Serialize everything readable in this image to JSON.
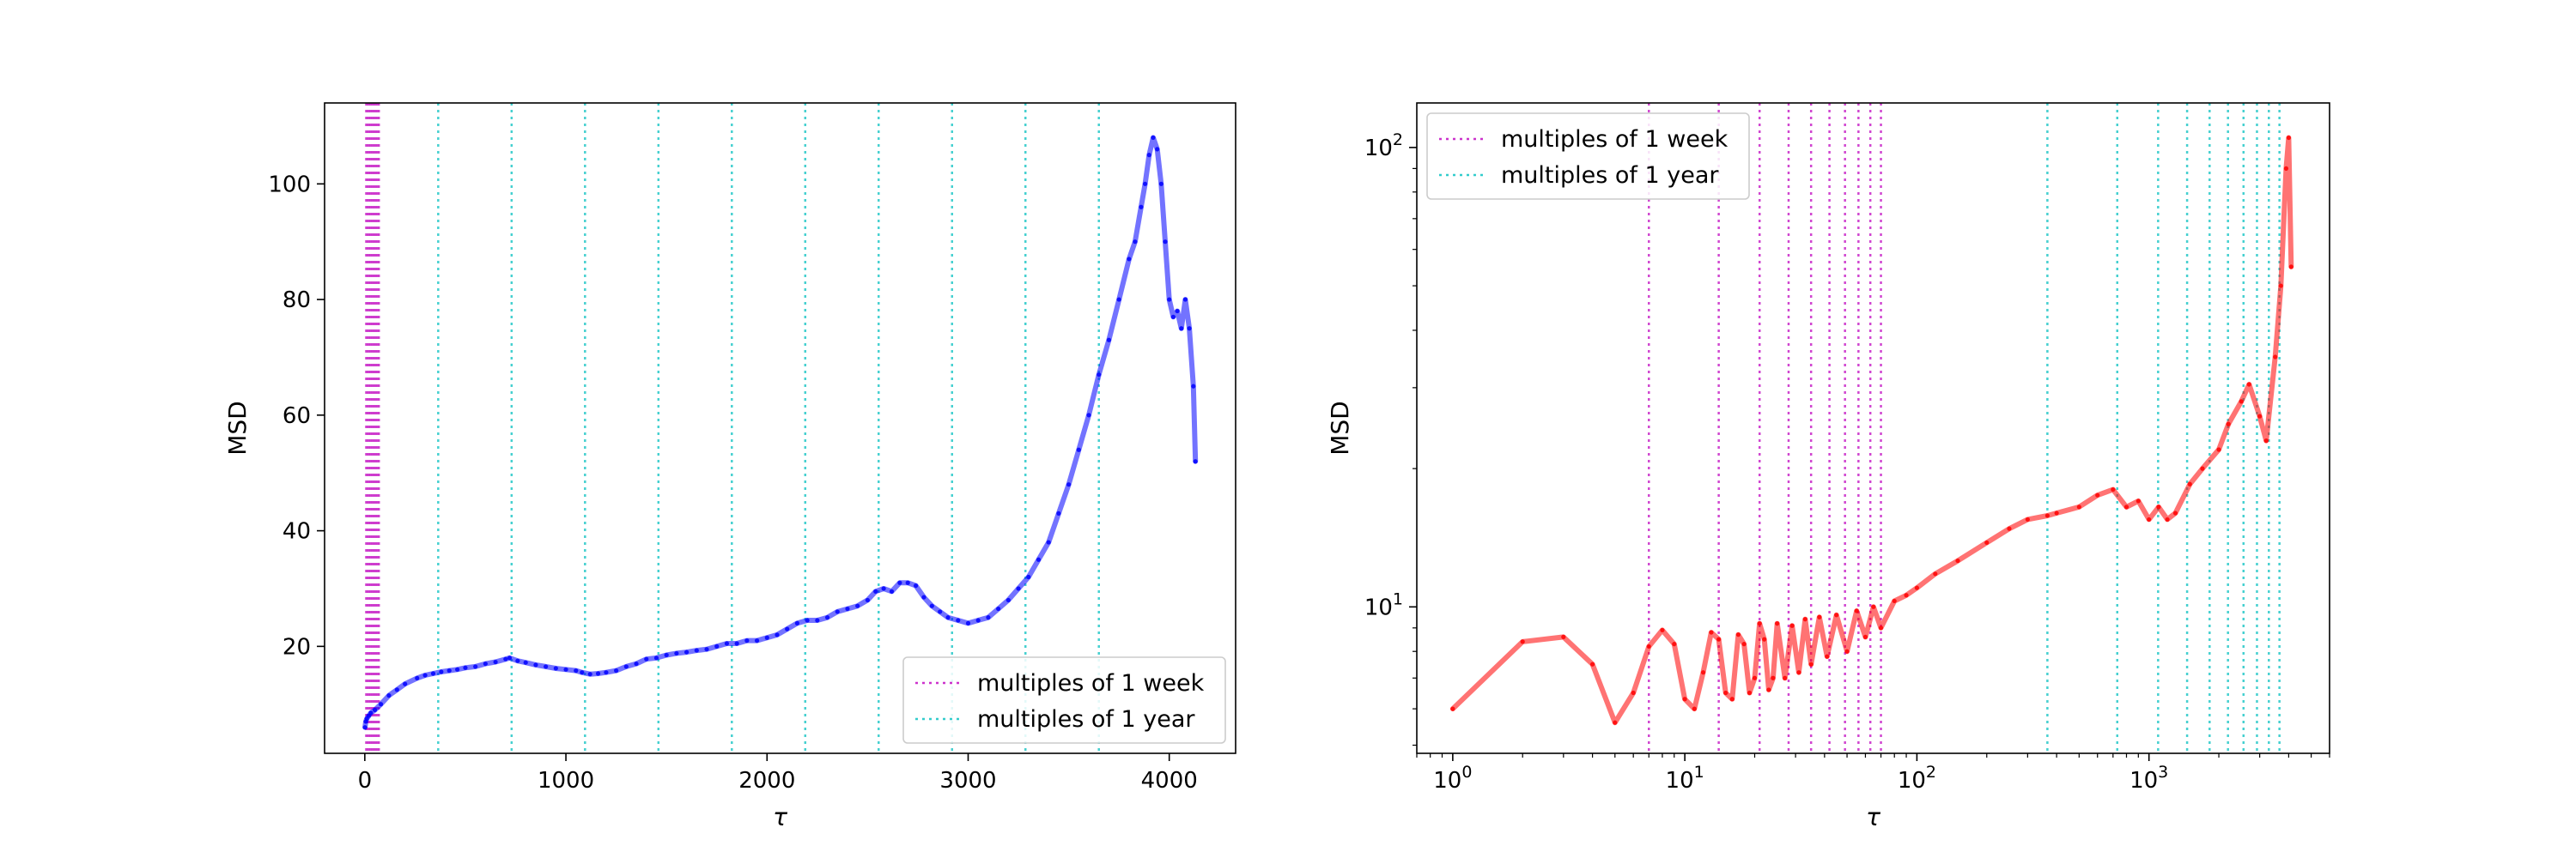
{
  "chart_data": [
    {
      "type": "line",
      "xlabel": "τ",
      "ylabel": "MSD",
      "xscale": "linear",
      "yscale": "linear",
      "xlim": [
        -200,
        4330
      ],
      "ylim": [
        1.5,
        114
      ],
      "xticks": [
        0,
        1000,
        2000,
        3000,
        4000
      ],
      "xtick_labels": [
        "0",
        "1000",
        "2000",
        "3000",
        "4000"
      ],
      "yticks": [
        20,
        40,
        60,
        80,
        100
      ],
      "ytick_labels": [
        "20",
        "40",
        "60",
        "80",
        "100"
      ],
      "grid": false,
      "legend": {
        "location": "lower-right",
        "entries": [
          {
            "label": "multiples of 1 week",
            "color": "#cc33cc"
          },
          {
            "label": "multiples of 1 year",
            "color": "#33cccc"
          }
        ]
      },
      "series": [
        {
          "color": "#0000ff",
          "marker": true,
          "x": [
            1,
            5,
            10,
            20,
            30,
            50,
            80,
            120,
            160,
            200,
            260,
            300,
            340,
            380,
            420,
            460,
            500,
            550,
            600,
            650,
            700,
            720,
            760,
            800,
            850,
            900,
            950,
            1000,
            1050,
            1080,
            1120,
            1160,
            1200,
            1250,
            1300,
            1350,
            1400,
            1450,
            1500,
            1550,
            1600,
            1650,
            1700,
            1750,
            1800,
            1850,
            1900,
            1950,
            2000,
            2050,
            2100,
            2150,
            2200,
            2250,
            2300,
            2350,
            2400,
            2450,
            2500,
            2540,
            2580,
            2620,
            2660,
            2700,
            2740,
            2780,
            2820,
            2860,
            2900,
            2950,
            3000,
            3050,
            3100,
            3150,
            3200,
            3250,
            3300,
            3350,
            3400,
            3450,
            3500,
            3550,
            3600,
            3650,
            3700,
            3750,
            3800,
            3830,
            3860,
            3880,
            3900,
            3920,
            3940,
            3960,
            3980,
            4000,
            4020,
            4040,
            4060,
            4080,
            4100,
            4120,
            4130
          ],
          "y": [
            6,
            7,
            7.5,
            8,
            8.5,
            9,
            10,
            11.5,
            12.5,
            13.5,
            14.5,
            15,
            15.3,
            15.6,
            15.8,
            16,
            16.3,
            16.5,
            17,
            17.3,
            17.8,
            18,
            17.5,
            17.2,
            16.8,
            16.5,
            16.2,
            16,
            15.8,
            15.5,
            15.2,
            15.3,
            15.5,
            15.8,
            16.5,
            17,
            17.8,
            18,
            18.5,
            18.8,
            19,
            19.3,
            19.5,
            20,
            20.5,
            20.5,
            21,
            21,
            21.5,
            22,
            23,
            24,
            24.5,
            24.5,
            25,
            26,
            26.5,
            27,
            28,
            29.5,
            30,
            29.5,
            31,
            31,
            30.5,
            28.5,
            27,
            26,
            25,
            24.5,
            24,
            24.5,
            25,
            26.5,
            28,
            30,
            32,
            35,
            38,
            43,
            48,
            54,
            60,
            67,
            73,
            80,
            87,
            90,
            96,
            100,
            105,
            108,
            106,
            100,
            90,
            80,
            77,
            78,
            75,
            80,
            75,
            65,
            52
          ]
        }
      ],
      "vlines": [
        {
          "label": "multiples of 1 week",
          "color": "#cc33cc",
          "x_start": 7,
          "step": 7,
          "x_end": 70
        },
        {
          "label": "multiples of 1 year",
          "color": "#33cccc",
          "x_start": 365,
          "step": 365,
          "x_end": 4000
        }
      ]
    },
    {
      "type": "line",
      "xlabel": "τ",
      "ylabel": "MSD",
      "xscale": "log",
      "yscale": "log",
      "xlim": [
        0.7,
        6000
      ],
      "ylim": [
        4.8,
        125
      ],
      "xticks": [
        1,
        10,
        100,
        1000
      ],
      "xtick_labels": [
        [
          "10",
          "0"
        ],
        [
          "10",
          "1"
        ],
        [
          "10",
          "2"
        ],
        [
          "10",
          "3"
        ]
      ],
      "yticks": [
        10,
        100
      ],
      "ytick_labels": [
        [
          "10",
          "1"
        ],
        [
          "10",
          "2"
        ]
      ],
      "grid": false,
      "legend": {
        "location": "top-left",
        "entries": [
          {
            "label": "multiples of 1 week",
            "color": "#cc33cc"
          },
          {
            "label": "multiples of 1 year",
            "color": "#33cccc"
          }
        ]
      },
      "series": [
        {
          "color": "#ff0000",
          "marker": true,
          "x": [
            1,
            2,
            3,
            4,
            5,
            6,
            7,
            8,
            9,
            10,
            11,
            12,
            13,
            14,
            15,
            16,
            17,
            18,
            19,
            20,
            21,
            22,
            23,
            24,
            25,
            27,
            29,
            31,
            33,
            35,
            38,
            41,
            45,
            50,
            55,
            60,
            65,
            70,
            80,
            90,
            100,
            120,
            150,
            200,
            250,
            300,
            365,
            400,
            500,
            600,
            700,
            800,
            900,
            1000,
            1100,
            1200,
            1300,
            1500,
            1700,
            2000,
            2200,
            2500,
            2700,
            3000,
            3200,
            3500,
            3700,
            3900,
            4000,
            4100
          ],
          "y": [
            6,
            8.4,
            8.6,
            7.5,
            5.6,
            6.5,
            8.2,
            8.9,
            8.3,
            6.3,
            6,
            7.2,
            8.8,
            8.5,
            6.5,
            6.3,
            8.7,
            8.3,
            6.5,
            7,
            9.2,
            8.5,
            6.6,
            7,
            9.2,
            7,
            9.1,
            7.2,
            9.4,
            7.5,
            9.5,
            7.8,
            9.6,
            8,
            9.8,
            8.6,
            10,
            9,
            10.3,
            10.6,
            11,
            11.8,
            12.6,
            13.8,
            14.8,
            15.5,
            15.8,
            16,
            16.5,
            17.5,
            18,
            16.5,
            17,
            15.5,
            16.5,
            15.5,
            16,
            18.5,
            20,
            22,
            25,
            28,
            30.5,
            26,
            23,
            35,
            50,
            90,
            105,
            55
          ]
        }
      ],
      "vlines": [
        {
          "label": "multiples of 1 week",
          "color": "#cc33cc",
          "x_start": 7,
          "step": 7,
          "x_end": 70
        },
        {
          "label": "multiples of 1 year",
          "color": "#33cccc",
          "x_start": 365,
          "step": 365,
          "x_end": 4000
        }
      ]
    }
  ]
}
